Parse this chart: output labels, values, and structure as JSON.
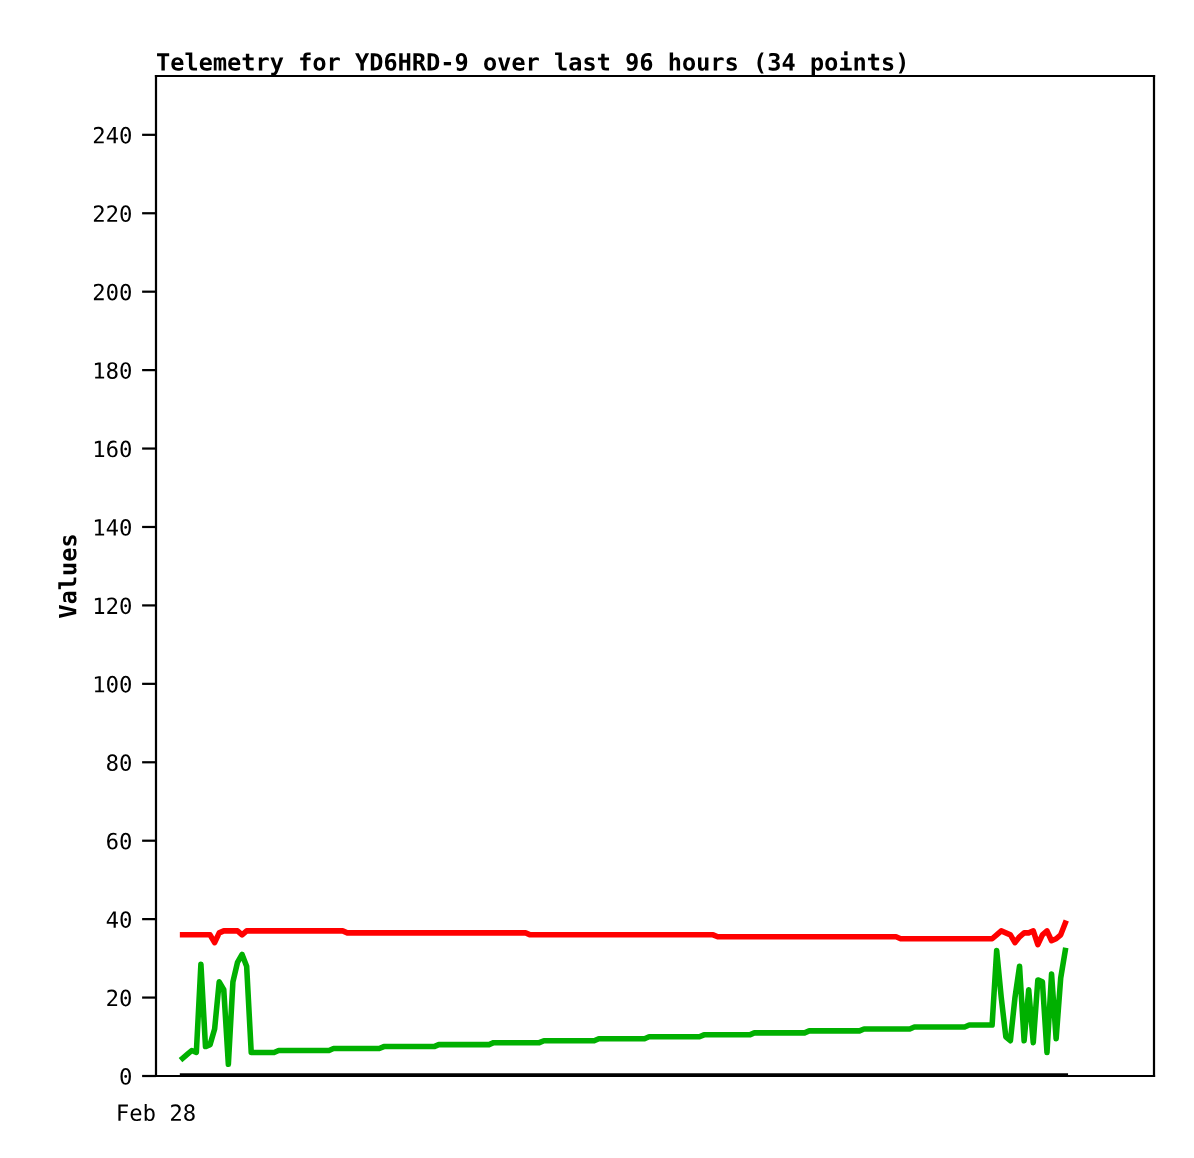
{
  "chart_data": {
    "type": "line",
    "title": "Telemetry for YD6HRD-9 over last 96 hours (34 points)",
    "ylabel": "Values",
    "annotations": [
      "Feb 28"
    ],
    "categories": [
      null,
      null,
      null,
      null,
      null,
      null,
      null,
      null,
      null,
      null,
      null,
      null,
      null,
      null,
      null,
      null,
      null,
      null,
      null,
      null,
      null,
      null,
      null,
      null,
      null,
      null,
      null,
      null,
      null,
      null,
      null,
      null,
      null,
      null,
      null,
      null,
      null,
      null,
      null,
      null,
      null,
      null,
      null,
      null,
      null,
      null,
      null,
      null,
      null,
      null,
      null,
      null,
      null,
      null,
      null,
      null,
      null,
      null,
      null,
      null,
      null,
      null,
      null,
      null,
      null,
      null,
      null,
      null,
      null,
      null,
      null,
      null,
      null,
      null,
      null,
      null,
      null,
      null,
      null,
      null,
      null,
      null,
      null,
      null,
      null,
      null,
      null,
      null,
      null,
      null,
      null,
      null,
      null,
      null,
      null,
      null,
      null,
      null,
      null,
      null,
      null,
      null,
      null,
      null,
      null,
      null,
      null,
      null,
      null,
      null,
      null,
      null,
      null,
      null,
      null,
      null,
      null,
      null,
      null,
      null,
      null,
      null,
      null,
      null,
      null,
      null,
      null,
      null,
      null,
      null,
      null,
      null,
      null,
      null,
      null,
      null,
      null,
      null,
      null,
      null,
      null,
      null,
      null,
      null,
      null,
      null,
      null,
      null,
      null,
      null,
      null,
      null,
      null,
      null,
      null,
      null,
      null,
      null,
      null,
      null,
      null,
      null,
      null,
      null,
      null,
      null,
      null,
      null,
      null,
      null,
      null,
      null,
      null,
      null,
      null,
      null,
      null,
      null,
      null,
      null,
      null,
      null,
      null,
      null,
      null,
      null,
      null,
      null,
      null,
      null,
      null,
      null,
      null,
      null
    ],
    "ylim": [
      0,
      255
    ],
    "yticks": [
      0,
      20,
      40,
      60,
      80,
      100,
      120,
      140,
      160,
      180,
      200,
      220,
      240
    ],
    "grid": false,
    "marker": "none",
    "line_style": "solid",
    "series": [
      {
        "color": "#ff0000",
        "values": [
          36,
          36,
          36,
          36,
          36,
          36,
          36,
          34,
          36.5,
          37,
          37,
          37,
          37,
          36,
          37,
          37,
          37,
          37,
          37,
          37,
          37,
          37,
          37,
          37,
          37,
          37,
          37,
          37,
          37,
          37,
          37,
          37,
          37,
          37,
          37,
          37,
          36.5,
          36.5,
          36.5,
          36.5,
          36.5,
          36.5,
          36.5,
          36.5,
          36.5,
          36.5,
          36.5,
          36.5,
          36.5,
          36.5,
          36.5,
          36.5,
          36.5,
          36.5,
          36.5,
          36.5,
          36.5,
          36.5,
          36.5,
          36.5,
          36.5,
          36.5,
          36.5,
          36.5,
          36.5,
          36.5,
          36.5,
          36.5,
          36.5,
          36.5,
          36.5,
          36.5,
          36.5,
          36.5,
          36.5,
          36.5,
          36,
          36,
          36,
          36,
          36,
          36,
          36,
          36,
          36,
          36,
          36,
          36,
          36,
          36,
          36,
          36,
          36,
          36,
          36,
          36,
          36,
          36,
          36,
          36,
          36,
          36,
          36,
          36,
          36,
          36,
          36,
          36,
          36,
          36,
          36,
          36,
          36,
          36,
          36,
          36,
          36,
          35.5,
          35.5,
          35.5,
          35.5,
          35.5,
          35.5,
          35.5,
          35.5,
          35.5,
          35.5,
          35.5,
          35.5,
          35.5,
          35.5,
          35.5,
          35.5,
          35.5,
          35.5,
          35.5,
          35.5,
          35.5,
          35.5,
          35.5,
          35.5,
          35.5,
          35.5,
          35.5,
          35.5,
          35.5,
          35.5,
          35.5,
          35.5,
          35.5,
          35.5,
          35.5,
          35.5,
          35.5,
          35.5,
          35.5,
          35.5,
          35,
          35,
          35,
          35,
          35,
          35,
          35,
          35,
          35,
          35,
          35,
          35,
          35,
          35,
          35,
          35,
          35,
          35,
          35,
          35,
          35,
          36,
          37,
          36.5,
          36,
          34,
          35.5,
          36.5,
          36.5,
          37,
          33.5,
          36,
          37,
          34.5,
          35,
          36,
          39
        ]
      },
      {
        "color": "#00b000",
        "values": [
          4.5,
          5.5,
          6.5,
          6,
          28.5,
          7.5,
          8,
          12,
          24,
          22,
          3,
          24,
          29,
          31,
          28,
          6,
          6,
          6,
          6,
          6,
          6,
          6.5,
          6.5,
          6.5,
          6.5,
          6.5,
          6.5,
          6.5,
          6.5,
          6.5,
          6.5,
          6.5,
          6.5,
          7,
          7,
          7,
          7,
          7,
          7,
          7,
          7,
          7,
          7,
          7,
          7.5,
          7.5,
          7.5,
          7.5,
          7.5,
          7.5,
          7.5,
          7.5,
          7.5,
          7.5,
          7.5,
          7.5,
          8,
          8,
          8,
          8,
          8,
          8,
          8,
          8,
          8,
          8,
          8,
          8,
          8.5,
          8.5,
          8.5,
          8.5,
          8.5,
          8.5,
          8.5,
          8.5,
          8.5,
          8.5,
          8.5,
          9,
          9,
          9,
          9,
          9,
          9,
          9,
          9,
          9,
          9,
          9,
          9,
          9.5,
          9.5,
          9.5,
          9.5,
          9.5,
          9.5,
          9.5,
          9.5,
          9.5,
          9.5,
          9.5,
          10,
          10,
          10,
          10,
          10,
          10,
          10,
          10,
          10,
          10,
          10,
          10,
          10.5,
          10.5,
          10.5,
          10.5,
          10.5,
          10.5,
          10.5,
          10.5,
          10.5,
          10.5,
          10.5,
          11,
          11,
          11,
          11,
          11,
          11,
          11,
          11,
          11,
          11,
          11,
          11,
          11.5,
          11.5,
          11.5,
          11.5,
          11.5,
          11.5,
          11.5,
          11.5,
          11.5,
          11.5,
          11.5,
          11.5,
          12,
          12,
          12,
          12,
          12,
          12,
          12,
          12,
          12,
          12,
          12,
          12.5,
          12.5,
          12.5,
          12.5,
          12.5,
          12.5,
          12.5,
          12.5,
          12.5,
          12.5,
          12.5,
          12.5,
          13,
          13,
          13,
          13,
          13,
          13,
          32,
          20,
          10,
          9,
          20,
          28,
          9,
          22,
          8.5,
          24.5,
          24,
          6,
          26,
          9.5,
          25,
          32
        ]
      },
      {
        "color": "#000000",
        "values": [
          0,
          0,
          0,
          0,
          0,
          0,
          0,
          0,
          0,
          0,
          0,
          0,
          0,
          0,
          0,
          0,
          0,
          0,
          0,
          0,
          0,
          0,
          0,
          0,
          0,
          0,
          0,
          0,
          0,
          0,
          0,
          0,
          0,
          0,
          0,
          0,
          0,
          0,
          0,
          0,
          0,
          0,
          0,
          0,
          0,
          0,
          0,
          0,
          0,
          0,
          0,
          0,
          0,
          0,
          0,
          0,
          0,
          0,
          0,
          0,
          0,
          0,
          0,
          0,
          0,
          0,
          0,
          0,
          0,
          0,
          0,
          0,
          0,
          0,
          0,
          0,
          0,
          0,
          0,
          0,
          0,
          0,
          0,
          0,
          0,
          0,
          0,
          0,
          0,
          0,
          0,
          0,
          0,
          0,
          0,
          0,
          0,
          0,
          0,
          0,
          0,
          0,
          0,
          0,
          0,
          0,
          0,
          0,
          0,
          0,
          0,
          0,
          0,
          0,
          0,
          0,
          0,
          0,
          0,
          0,
          0,
          0,
          0,
          0,
          0,
          0,
          0,
          0,
          0,
          0,
          0,
          0,
          0,
          0,
          0,
          0,
          0,
          0,
          0,
          0,
          0,
          0,
          0,
          0,
          0,
          0,
          0,
          0,
          0,
          0,
          0,
          0,
          0,
          0,
          0,
          0,
          0,
          0,
          0,
          0,
          0,
          0,
          0,
          0,
          0,
          0,
          0,
          0,
          0,
          0,
          0,
          0,
          0,
          0,
          0,
          0,
          0,
          0,
          0,
          0,
          0,
          0,
          0,
          0,
          0,
          0,
          0,
          0,
          0,
          0,
          0,
          0,
          0,
          0
        ]
      }
    ]
  }
}
